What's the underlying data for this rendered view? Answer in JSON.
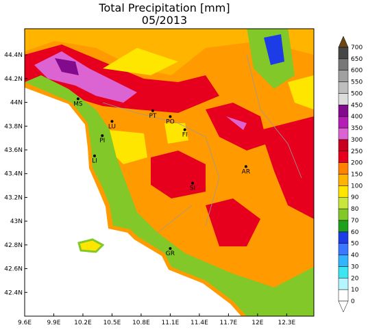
{
  "title": "Total Precipitation [mm]",
  "subtitle": "05/2013",
  "map": {
    "xlim": [
      9.6,
      12.58
    ],
    "ylim": [
      42.2,
      44.62
    ],
    "xticks": [
      {
        "value": 9.6,
        "label": "9.6E"
      },
      {
        "value": 9.9,
        "label": "9.9E"
      },
      {
        "value": 10.2,
        "label": "10.2E"
      },
      {
        "value": 10.5,
        "label": "10.5E"
      },
      {
        "value": 10.8,
        "label": "10.8E"
      },
      {
        "value": 11.1,
        "label": "11.1E"
      },
      {
        "value": 11.4,
        "label": "11.4E"
      },
      {
        "value": 11.7,
        "label": "11.7E"
      },
      {
        "value": 12,
        "label": "12E"
      },
      {
        "value": 12.3,
        "label": "12.3E"
      }
    ],
    "yticks": [
      {
        "value": 44.4,
        "label": "44.4N"
      },
      {
        "value": 44.2,
        "label": "44.2N"
      },
      {
        "value": 44,
        "label": "44N"
      },
      {
        "value": 43.8,
        "label": "43.8N"
      },
      {
        "value": 43.6,
        "label": "43.6N"
      },
      {
        "value": 43.4,
        "label": "43.4N"
      },
      {
        "value": 43.2,
        "label": "43.2N"
      },
      {
        "value": 43,
        "label": "43N"
      },
      {
        "value": 42.8,
        "label": "42.8N"
      },
      {
        "value": 42.6,
        "label": "42.6N"
      },
      {
        "value": 42.4,
        "label": "42.4N"
      }
    ],
    "cities": [
      {
        "label": "MS",
        "lon": 10.15,
        "lat": 44.03
      },
      {
        "label": "LU",
        "lon": 10.5,
        "lat": 43.84
      },
      {
        "label": "PT",
        "lon": 10.92,
        "lat": 43.93
      },
      {
        "label": "PO",
        "lon": 11.1,
        "lat": 43.88
      },
      {
        "label": "FI",
        "lon": 11.25,
        "lat": 43.77
      },
      {
        "label": "PI",
        "lon": 10.4,
        "lat": 43.72
      },
      {
        "label": "LI",
        "lon": 10.32,
        "lat": 43.55
      },
      {
        "label": "SI",
        "lon": 11.33,
        "lat": 43.32
      },
      {
        "label": "AR",
        "lon": 11.88,
        "lat": 43.46
      },
      {
        "label": "GR",
        "lon": 11.1,
        "lat": 42.77
      }
    ]
  },
  "colorbar": {
    "levels": [
      0,
      10,
      20,
      30,
      40,
      50,
      60,
      70,
      80,
      90,
      100,
      150,
      200,
      250,
      300,
      350,
      400,
      450,
      500,
      550,
      600,
      650,
      700
    ],
    "colors": [
      "#ffffff",
      "#b4f5ff",
      "#3ce6f0",
      "#32b4ff",
      "#3c78ff",
      "#1e3ce6",
      "#1ea01e",
      "#82c828",
      "#c8e63c",
      "#ffe600",
      "#ffb400",
      "#ff8200",
      "#e6001e",
      "#c8001e",
      "#dc64d2",
      "#b41eb4",
      "#820a8c",
      "#dcdcdc",
      "#bebebe",
      "#a0a0a0",
      "#787878",
      "#464646"
    ],
    "over_color": "#6e4614"
  }
}
